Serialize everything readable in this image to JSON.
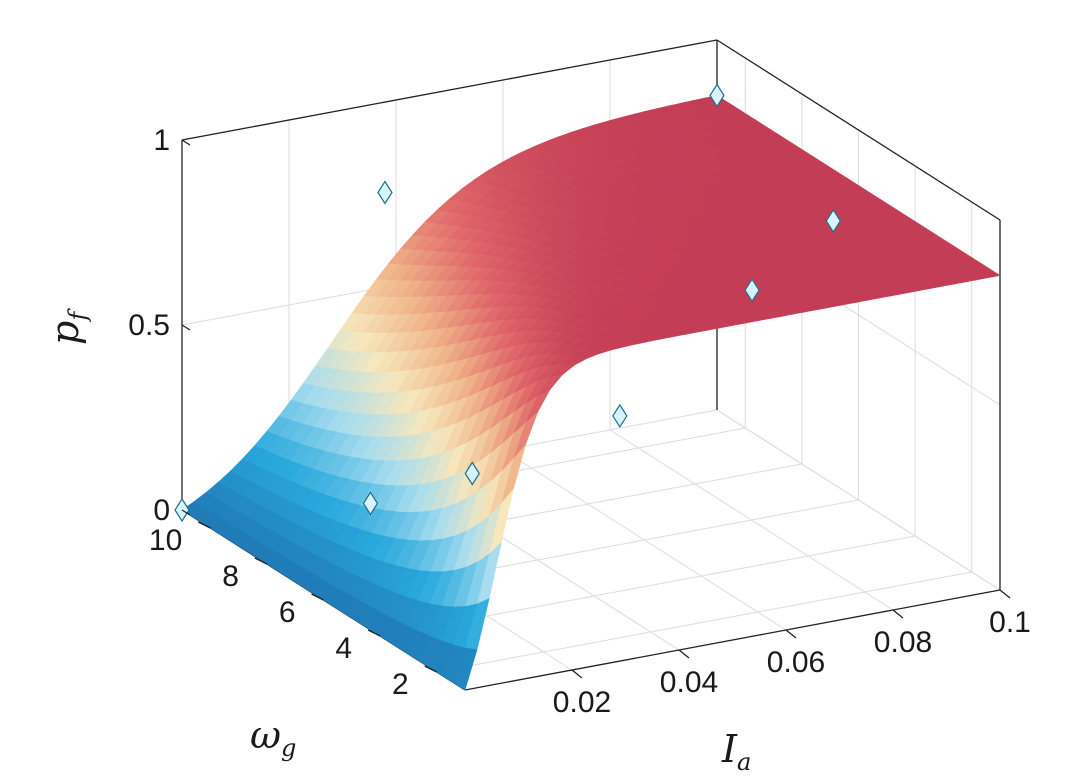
{
  "chart_data": {
    "type": "surface",
    "title": "",
    "xlabel": "I",
    "xlabel_sub": "a",
    "ylabel": "ω",
    "ylabel_sub": "g",
    "zlabel": "p",
    "zlabel_sub": "f",
    "xlim": [
      0,
      0.1
    ],
    "ylim": [
      1,
      11
    ],
    "zlim": [
      0,
      1
    ],
    "x_ticks": [
      "0.02",
      "0.04",
      "0.06",
      "0.08",
      "0.1"
    ],
    "y_ticks": [
      "2",
      "4",
      "6",
      "8",
      "10"
    ],
    "z_ticks": [
      "0",
      "0.5",
      "1"
    ],
    "grid": true,
    "colormap": [
      "#1f78b4",
      "#29a9dd",
      "#a6dcef",
      "#f7e7bd",
      "#f0b389",
      "#e0676a",
      "#c43d56"
    ],
    "surface_model": "p_f rises sigmoidally with I_a, reaching about 0.85 at I_a = 0.1; transition steepest at low omega_g",
    "points": [
      {
        "x": 0.022,
        "y": 8.5,
        "z": 0.08
      },
      {
        "x": 0.004,
        "y": 1.5,
        "z": 0.55
      },
      {
        "x": 0.03,
        "y": 1.2,
        "z": 0.65
      },
      {
        "x": 0.06,
        "y": 2.2,
        "z": 0.86
      },
      {
        "x": 0.03,
        "y": 9.5,
        "z": 0.85
      },
      {
        "x": 0.09,
        "y": 5.0,
        "z": 0.83
      },
      {
        "x": 0.0,
        "y": 11.0,
        "z": 0.0
      },
      {
        "x": 0.1,
        "y": 11.0,
        "z": 0.85
      }
    ],
    "marker_color": "#d6f4fb",
    "marker_edge": "#1f6f8b"
  }
}
